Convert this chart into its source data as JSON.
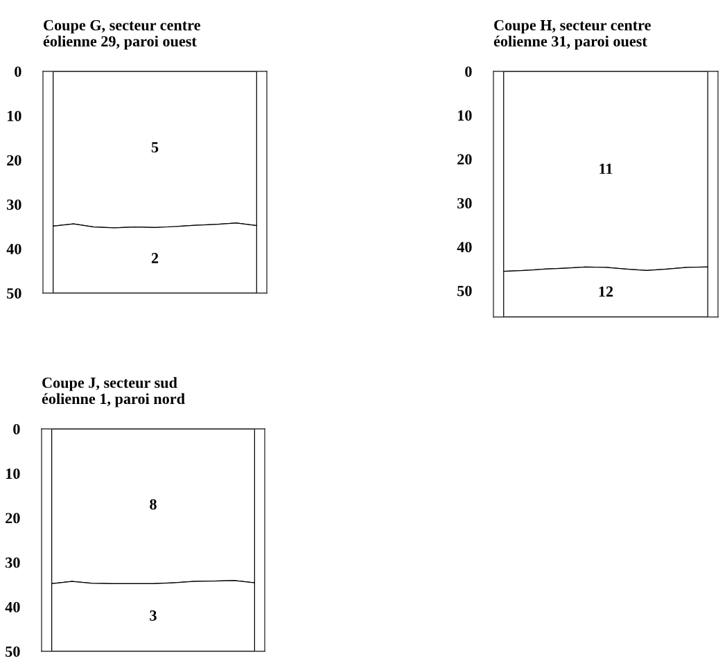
{
  "chart_data": [
    {
      "type": "area",
      "stacked": true,
      "title": "Coupe G, secteur centre\néolienne 29, paroi ouest",
      "categories": [
        null,
        null,
        null,
        null,
        null,
        null,
        null,
        null,
        null,
        null,
        null
      ],
      "ylim": [
        50,
        0
      ],
      "yticks": [
        0,
        10,
        20,
        30,
        40,
        50
      ],
      "tick_labels": "y",
      "series": [
        {
          "name": "5",
          "color": "#ffffff",
          "values": [
            34.9,
            34.4,
            35.1,
            35.3,
            35.1,
            35.2,
            35.0,
            34.7,
            34.5,
            34.2,
            34.8
          ]
        },
        {
          "name": "2",
          "color": "#ffffff",
          "values": [
            15.1,
            15.6,
            14.9,
            14.7,
            14.9,
            14.8,
            15.0,
            15.3,
            15.5,
            15.8,
            15.2
          ]
        }
      ]
    },
    {
      "type": "area",
      "stacked": true,
      "title": "Coupe H, secteur centre\néolienne 31, paroi ouest",
      "categories": [
        null,
        null,
        null,
        null,
        null,
        null,
        null,
        null,
        null,
        null,
        null
      ],
      "ylim": [
        56,
        0
      ],
      "yticks": [
        0,
        10,
        20,
        30,
        40,
        50
      ],
      "tick_labels": "y",
      "series": [
        {
          "name": "11",
          "color": "#ffffff",
          "values": [
            45.6,
            45.4,
            45.1,
            44.9,
            44.6,
            44.7,
            45.1,
            45.4,
            45.1,
            44.7,
            44.6
          ]
        },
        {
          "name": "12",
          "color": "#ffffff",
          "values": [
            10.4,
            10.6,
            10.9,
            11.1,
            11.4,
            11.3,
            10.9,
            10.6,
            10.9,
            11.3,
            11.4
          ]
        }
      ]
    },
    {
      "type": "area",
      "stacked": true,
      "title": "Coupe J, secteur sud\néolienne 1, paroi nord",
      "categories": [
        null,
        null,
        null,
        null,
        null,
        null,
        null,
        null,
        null,
        null,
        null
      ],
      "ylim": [
        50,
        0
      ],
      "yticks": [
        0,
        10,
        20,
        30,
        40,
        50
      ],
      "tick_labels": "y",
      "series": [
        {
          "name": "8",
          "color": "#ffffff",
          "values": [
            34.8,
            34.3,
            34.7,
            34.8,
            34.8,
            34.8,
            34.6,
            34.3,
            34.2,
            34.1,
            34.6
          ]
        },
        {
          "name": "3",
          "color": "#ffffff",
          "values": [
            15.2,
            15.7,
            15.3,
            15.2,
            15.2,
            15.2,
            15.4,
            15.7,
            15.8,
            15.9,
            15.4
          ]
        }
      ]
    }
  ]
}
